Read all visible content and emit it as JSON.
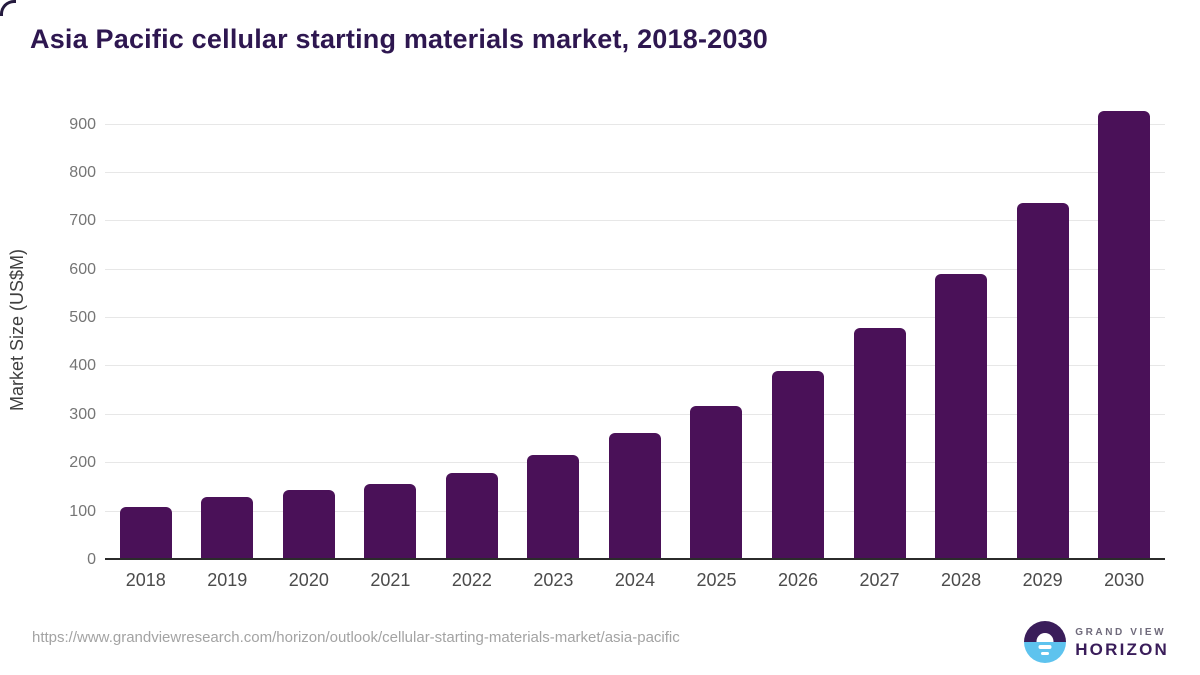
{
  "title": "Asia Pacific cellular starting materials market, 2018-2030",
  "chart_data": {
    "type": "bar",
    "title": "Asia Pacific cellular starting materials market, 2018-2030",
    "categories": [
      "2018",
      "2019",
      "2020",
      "2021",
      "2022",
      "2023",
      "2024",
      "2025",
      "2026",
      "2027",
      "2028",
      "2029",
      "2030"
    ],
    "values": [
      110,
      130,
      144,
      158,
      180,
      218,
      262,
      318,
      390,
      480,
      592,
      738,
      927
    ],
    "xlabel": "",
    "ylabel": "Market Size (US$M)",
    "ylim": [
      0,
      950
    ],
    "yticks": [
      0,
      100,
      200,
      300,
      400,
      500,
      600,
      700,
      800,
      900
    ],
    "grid": "horizontal gridlines only",
    "legend": "none",
    "bar_color": "#4a1158"
  },
  "footer": {
    "source_url": "https://www.grandviewresearch.com/horizon/outlook/cellular-starting-materials-market/asia-pacific",
    "logo": {
      "line1": "GRAND VIEW",
      "line2": "HORIZON"
    }
  },
  "colors": {
    "bar": "#4a1158",
    "title_text": "#2e1750",
    "y_tick_text": "#757575",
    "x_tick_text": "#4b4b4b",
    "gridline": "#e7e7e7",
    "axis_line": "#2b2b2b",
    "url_text": "#a3a3a3",
    "logo_purple": "#3a1d5a",
    "logo_blue": "#5ec3ee"
  }
}
